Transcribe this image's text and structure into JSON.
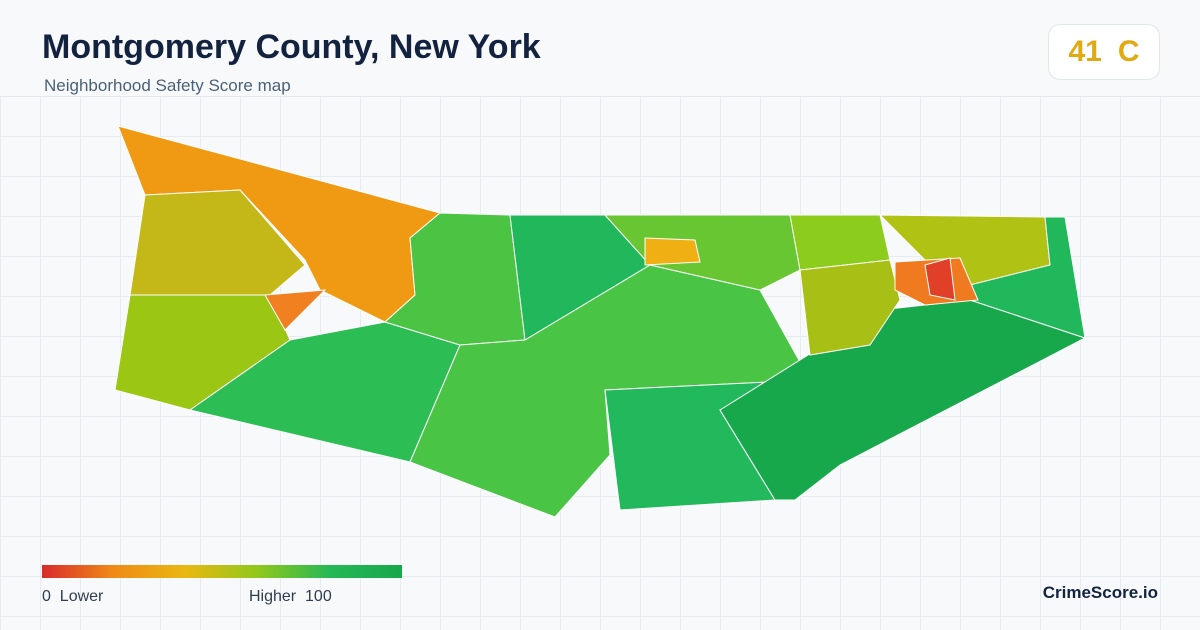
{
  "header": {
    "title": "Montgomery County, New York",
    "subtitle": "Neighborhood Safety Score map"
  },
  "score": {
    "value": 41,
    "grade": "C"
  },
  "legend": {
    "min": 0,
    "min_label": "Lower",
    "max_label": "Higher",
    "max": 100
  },
  "footer": {
    "brand": "CrimeScore.io"
  }
}
